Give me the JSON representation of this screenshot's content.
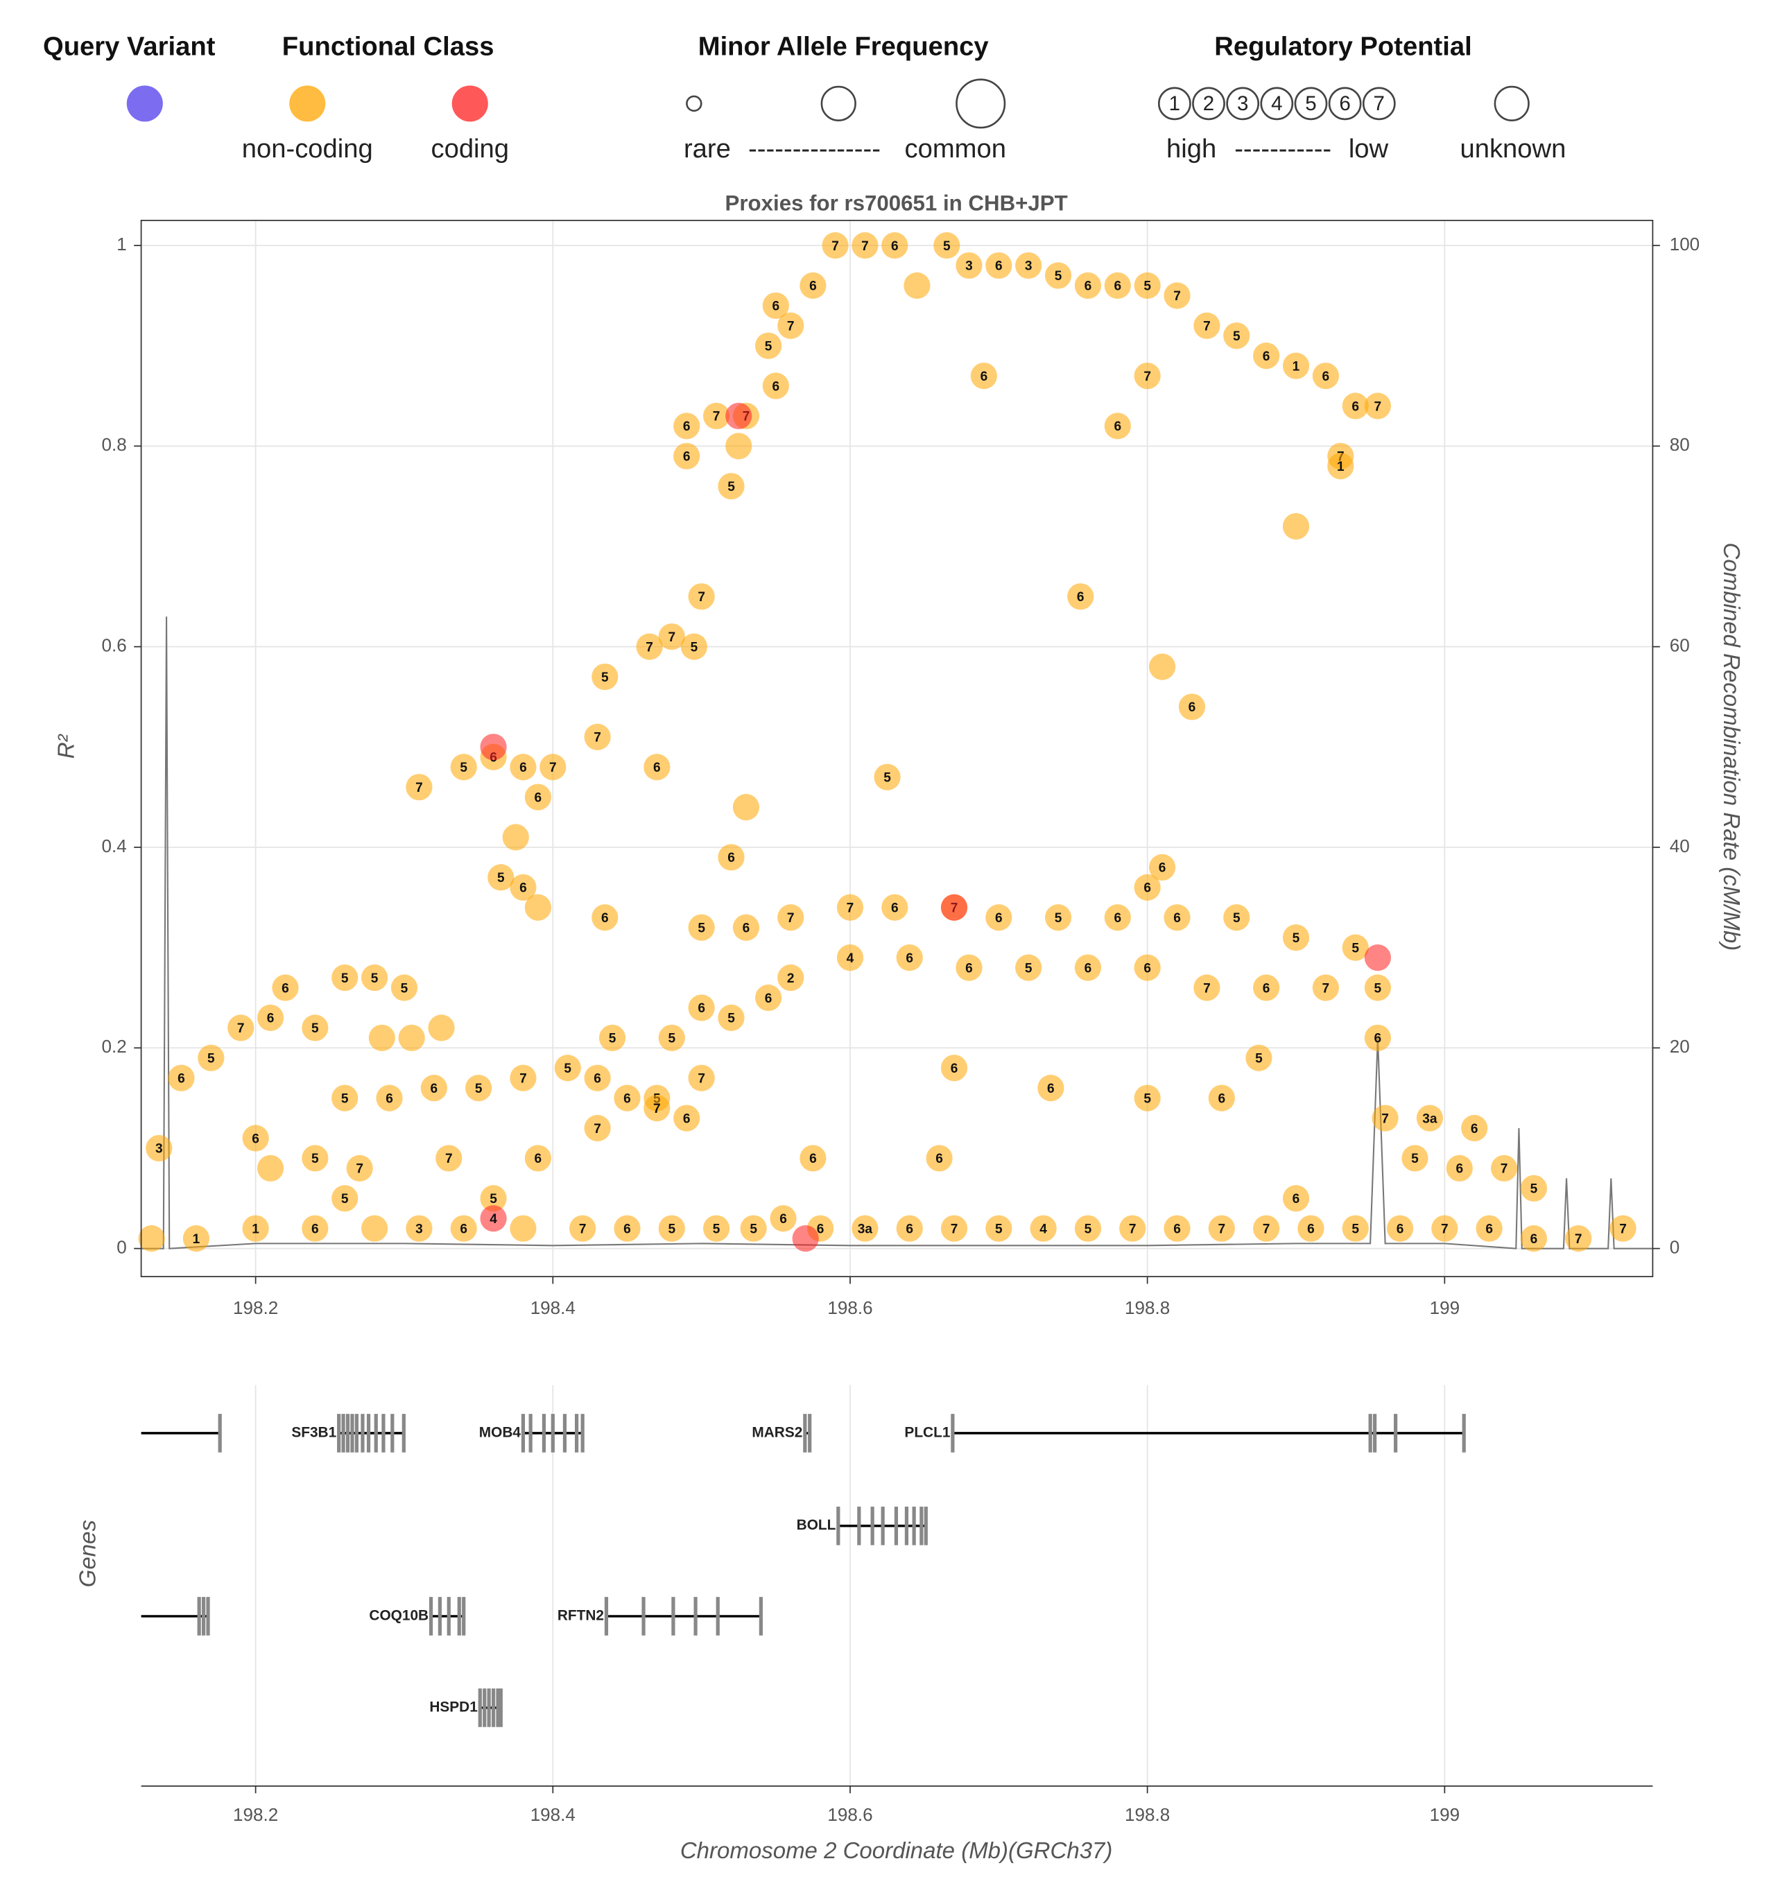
{
  "legend": {
    "query_heading": "Query Variant",
    "query_color": "#7b6cf0",
    "class_heading": "Functional Class",
    "maf_heading": "Minor Allele Frequency",
    "maf_low": "rare",
    "maf_dashes": "---------------",
    "maf_high": "common",
    "reg_heading": "Regulatory Potential",
    "reg_levels": [
      "1",
      "2",
      "3",
      "4",
      "5",
      "6",
      "7"
    ],
    "reg_high": "high",
    "reg_dashes": "-----------",
    "reg_low": "low",
    "reg_unknown": "unknown"
  },
  "chart_data": [
    {
      "type": "scatter",
      "title": "Proxies for rs700651 in CHB+JPT",
      "y_label": "R²",
      "y2_label": "Combined Recombination Rate (cM/Mb)",
      "xlim": [
        198.123,
        199.14
      ],
      "xticks": [
        198.2,
        198.4,
        198.6,
        198.8,
        199
      ],
      "ylim": [
        -0.028,
        1.025
      ],
      "yticks": [
        0,
        0.2,
        0.4,
        0.6,
        0.8,
        1
      ],
      "y2lim": [
        -2.8,
        102.5
      ],
      "y2ticks": [
        0,
        20,
        40,
        60,
        80,
        100
      ],
      "grid": true,
      "series": [
        {
          "name": "non-coding",
          "color": "#ffa500",
          "x": [
            198.55,
            198.56,
            198.575,
            198.59,
            198.61,
            198.63,
            198.665,
            198.68,
            198.7,
            198.72,
            198.74,
            198.76,
            198.78,
            198.8,
            198.82,
            198.84,
            198.86,
            198.88,
            198.9,
            198.92,
            198.94,
            198.955,
            198.645,
            198.49,
            198.51,
            198.53,
            198.525,
            198.52,
            198.49,
            198.55,
            198.545,
            198.69,
            198.8,
            198.78,
            198.93,
            198.93,
            198.9,
            198.5,
            198.755,
            198.81,
            198.83,
            198.465,
            198.48,
            198.495,
            198.435,
            198.43,
            198.47,
            198.625,
            198.53,
            198.31,
            198.34,
            198.36,
            198.38,
            198.4,
            198.375,
            198.39,
            198.365,
            198.38,
            198.39,
            198.52,
            198.435,
            198.81,
            198.8,
            198.5,
            198.53,
            198.56,
            198.6,
            198.63,
            198.67,
            198.7,
            198.74,
            198.78,
            198.82,
            198.86,
            198.9,
            198.94,
            198.56,
            198.6,
            198.64,
            198.68,
            198.72,
            198.76,
            198.8,
            198.84,
            198.88,
            198.92,
            198.955,
            198.5,
            198.52,
            198.545,
            198.135,
            198.15,
            198.17,
            198.19,
            198.21,
            198.22,
            198.24,
            198.26,
            198.28,
            198.3,
            198.285,
            198.305,
            198.325,
            198.26,
            198.29,
            198.32,
            198.35,
            198.38,
            198.41,
            198.43,
            198.45,
            198.47,
            198.44,
            198.48,
            198.5,
            198.43,
            198.47,
            198.49,
            198.575,
            198.66,
            198.67,
            198.735,
            198.8,
            198.85,
            198.875,
            198.955,
            198.96,
            198.99,
            199.02,
            198.98,
            199.01,
            199.04,
            199.06,
            198.2,
            198.21,
            198.24,
            198.27,
            198.33,
            198.39,
            198.13,
            198.16,
            198.2,
            198.24,
            198.26,
            198.28,
            198.31,
            198.34,
            198.36,
            198.38,
            198.42,
            198.45,
            198.48,
            198.51,
            198.535,
            198.555,
            198.58,
            198.61,
            198.64,
            198.67,
            198.7,
            198.73,
            198.76,
            198.79,
            198.82,
            198.85,
            198.88,
            198.91,
            198.94,
            198.97,
            199.0,
            199.03,
            199.06,
            199.09,
            199.12,
            198.9
          ],
          "values": [
            0.94,
            0.92,
            0.96,
            1.0,
            1.0,
            1.0,
            1.0,
            0.98,
            0.98,
            0.98,
            0.97,
            0.96,
            0.96,
            0.96,
            0.95,
            0.92,
            0.91,
            0.89,
            0.88,
            0.87,
            0.84,
            0.84,
            0.96,
            0.82,
            0.83,
            0.83,
            0.8,
            0.76,
            0.79,
            0.86,
            0.9,
            0.87,
            0.87,
            0.82,
            0.79,
            0.78,
            0.72,
            0.65,
            0.65,
            0.58,
            0.54,
            0.6,
            0.61,
            0.6,
            0.57,
            0.51,
            0.48,
            0.47,
            0.44,
            0.46,
            0.48,
            0.49,
            0.48,
            0.48,
            0.41,
            0.45,
            0.37,
            0.36,
            0.34,
            0.39,
            0.33,
            0.38,
            0.36,
            0.32,
            0.32,
            0.33,
            0.34,
            0.34,
            0.34,
            0.33,
            0.33,
            0.33,
            0.33,
            0.33,
            0.31,
            0.3,
            0.27,
            0.29,
            0.29,
            0.28,
            0.28,
            0.28,
            0.28,
            0.26,
            0.26,
            0.26,
            0.26,
            0.24,
            0.23,
            0.25,
            0.1,
            0.17,
            0.19,
            0.22,
            0.23,
            0.26,
            0.22,
            0.27,
            0.27,
            0.26,
            0.21,
            0.21,
            0.22,
            0.15,
            0.15,
            0.16,
            0.16,
            0.17,
            0.18,
            0.17,
            0.15,
            0.15,
            0.21,
            0.21,
            0.17,
            0.12,
            0.14,
            0.13,
            0.09,
            0.09,
            0.18,
            0.16,
            0.15,
            0.15,
            0.19,
            0.21,
            0.13,
            0.13,
            0.12,
            0.09,
            0.08,
            0.08,
            0.06,
            0.11,
            0.08,
            0.09,
            0.08,
            0.09,
            0.09,
            0.01,
            0.01,
            0.02,
            0.02,
            0.05,
            0.02,
            0.02,
            0.02,
            0.05,
            0.02,
            0.02,
            0.02,
            0.02,
            0.02,
            0.02,
            0.03,
            0.02,
            0.02,
            0.02,
            0.02,
            0.02,
            0.02,
            0.02,
            0.02,
            0.02,
            0.02,
            0.02,
            0.02,
            0.02,
            0.02,
            0.02,
            0.02,
            0.01,
            0.01,
            0.02,
            0.05
          ],
          "labels": [
            "6",
            "7",
            "6",
            "7",
            "7",
            "6",
            "5",
            "3",
            "6",
            "3",
            "5",
            "6",
            "6",
            "5",
            "7",
            "7",
            "5",
            "6",
            "1",
            "6",
            "6",
            "7",
            null,
            "6",
            "7",
            "7",
            null,
            "5",
            "6",
            "6",
            "5",
            "6",
            "7",
            "6",
            "7",
            "1",
            null,
            "7",
            "6",
            null,
            "6",
            "7",
            "7",
            "5",
            "5",
            "7",
            "6",
            "5",
            null,
            "7",
            "5",
            "6",
            "6",
            "7",
            null,
            "6",
            "5",
            "6",
            null,
            "6",
            "6",
            "6",
            "6",
            "5",
            "6",
            "7",
            "7",
            "6",
            "7",
            "6",
            "5",
            "6",
            "6",
            "5",
            "5",
            "5",
            "2",
            "4",
            "6",
            "6",
            "5",
            "6",
            "6",
            "7",
            "6",
            "7",
            "5",
            "6",
            "5",
            "6",
            "3",
            "6",
            "5",
            "7",
            "6",
            "6",
            "5",
            "5",
            "5",
            "5",
            null,
            null,
            null,
            "5",
            "6",
            "6",
            "5",
            "7",
            "5",
            "6",
            "6",
            "5",
            "5",
            "5",
            "7",
            "7",
            "7",
            "6",
            "6",
            "6",
            "6",
            "6",
            "5",
            "6",
            "5",
            "6",
            "7",
            "3a",
            "6",
            "5",
            "6",
            "7",
            "5",
            "6",
            null,
            "5",
            "7",
            "7",
            "6",
            null,
            "1",
            "1",
            "6",
            "5",
            null,
            "3",
            "6",
            "5",
            null,
            "7",
            "6",
            "5",
            "5",
            "5",
            "6",
            "6",
            "3a",
            "6",
            "7",
            "5",
            "4",
            "5",
            "7",
            "6",
            "7",
            "7",
            "6",
            "5",
            "6",
            "7",
            "6",
            "6",
            "7",
            "7",
            "6",
            null
          ]
        },
        {
          "name": "coding",
          "color": "#ff2020",
          "x": [
            198.36,
            198.67,
            198.525,
            198.955,
            198.57,
            198.36
          ],
          "values": [
            0.5,
            0.34,
            0.83,
            0.29,
            0.01,
            0.03
          ],
          "labels": [
            null,
            null,
            null,
            null,
            null,
            "4"
          ]
        }
      ],
      "recombination": {
        "color": "#777777",
        "axis": "y2",
        "x": [
          198.123,
          198.138,
          198.14,
          198.142,
          198.2,
          198.3,
          198.4,
          198.5,
          198.6,
          198.7,
          198.8,
          198.9,
          198.95,
          198.955,
          198.96,
          199.0,
          199.048,
          199.05,
          199.052,
          199.08,
          199.082,
          199.084,
          199.11,
          199.112,
          199.114,
          199.14
        ],
        "values": [
          0,
          0,
          63,
          0,
          0.5,
          0.5,
          0.3,
          0.5,
          0.3,
          0.3,
          0.3,
          0.5,
          0.5,
          21,
          0.5,
          0.5,
          0,
          12,
          0,
          0,
          7,
          0,
          0,
          7,
          0,
          0
        ]
      }
    },
    {
      "type": "genes",
      "y_label": "Genes",
      "x_label": "Chromosome 2 Coordinate (Mb)(GRCh37)",
      "xlim": [
        198.123,
        199.14
      ],
      "xticks": [
        198.2,
        198.4,
        198.6,
        198.8,
        199
      ],
      "color": "#000000",
      "exon_color": "#888888",
      "rows": [
        [
          {
            "name": null,
            "start": 198.123,
            "end": 198.176,
            "exons": [
              198.176
            ]
          },
          {
            "name": "SF3B1",
            "start": 198.256,
            "end": 198.2997,
            "exons": [
              198.256,
              198.259,
              198.262,
              198.265,
              198.268,
              198.272,
              198.276,
              198.281,
              198.286,
              198.292,
              198.2997
            ]
          },
          {
            "name": "MOB4",
            "start": 198.38,
            "end": 198.42,
            "exons": [
              198.38,
              198.385,
              198.394,
              198.4,
              198.408,
              198.416,
              198.42
            ]
          },
          {
            "name": "MARS2",
            "start": 198.5696,
            "end": 198.5728,
            "exons": [
              198.5696,
              198.5728
            ]
          },
          {
            "name": "PLCL1",
            "start": 198.669,
            "end": 199.013,
            "exons": [
              198.669,
              198.95,
              198.953,
              198.967,
              199.013
            ]
          }
        ],
        [
          {
            "name": "BOLL",
            "start": 198.592,
            "end": 198.651,
            "exons": [
              198.592,
              198.606,
              198.615,
              198.622,
              198.631,
              198.638,
              198.643,
              198.648,
              198.651
            ]
          }
        ],
        [
          {
            "name": null,
            "start": 198.123,
            "end": 198.168,
            "exons": [
              198.162,
              198.165,
              198.168
            ]
          },
          {
            "name": "COQ10B",
            "start": 198.318,
            "end": 198.34,
            "exons": [
              198.318,
              198.324,
              198.33,
              198.337,
              198.34
            ]
          },
          {
            "name": "RFTN2",
            "start": 198.436,
            "end": 198.54,
            "exons": [
              198.436,
              198.461,
              198.481,
              198.496,
              198.511,
              198.54
            ]
          }
        ],
        [
          {
            "name": "HSPD1",
            "start": 198.351,
            "end": 198.365,
            "exons": [
              198.351,
              198.354,
              198.357,
              198.36,
              198.363,
              198.365
            ]
          }
        ]
      ]
    }
  ]
}
